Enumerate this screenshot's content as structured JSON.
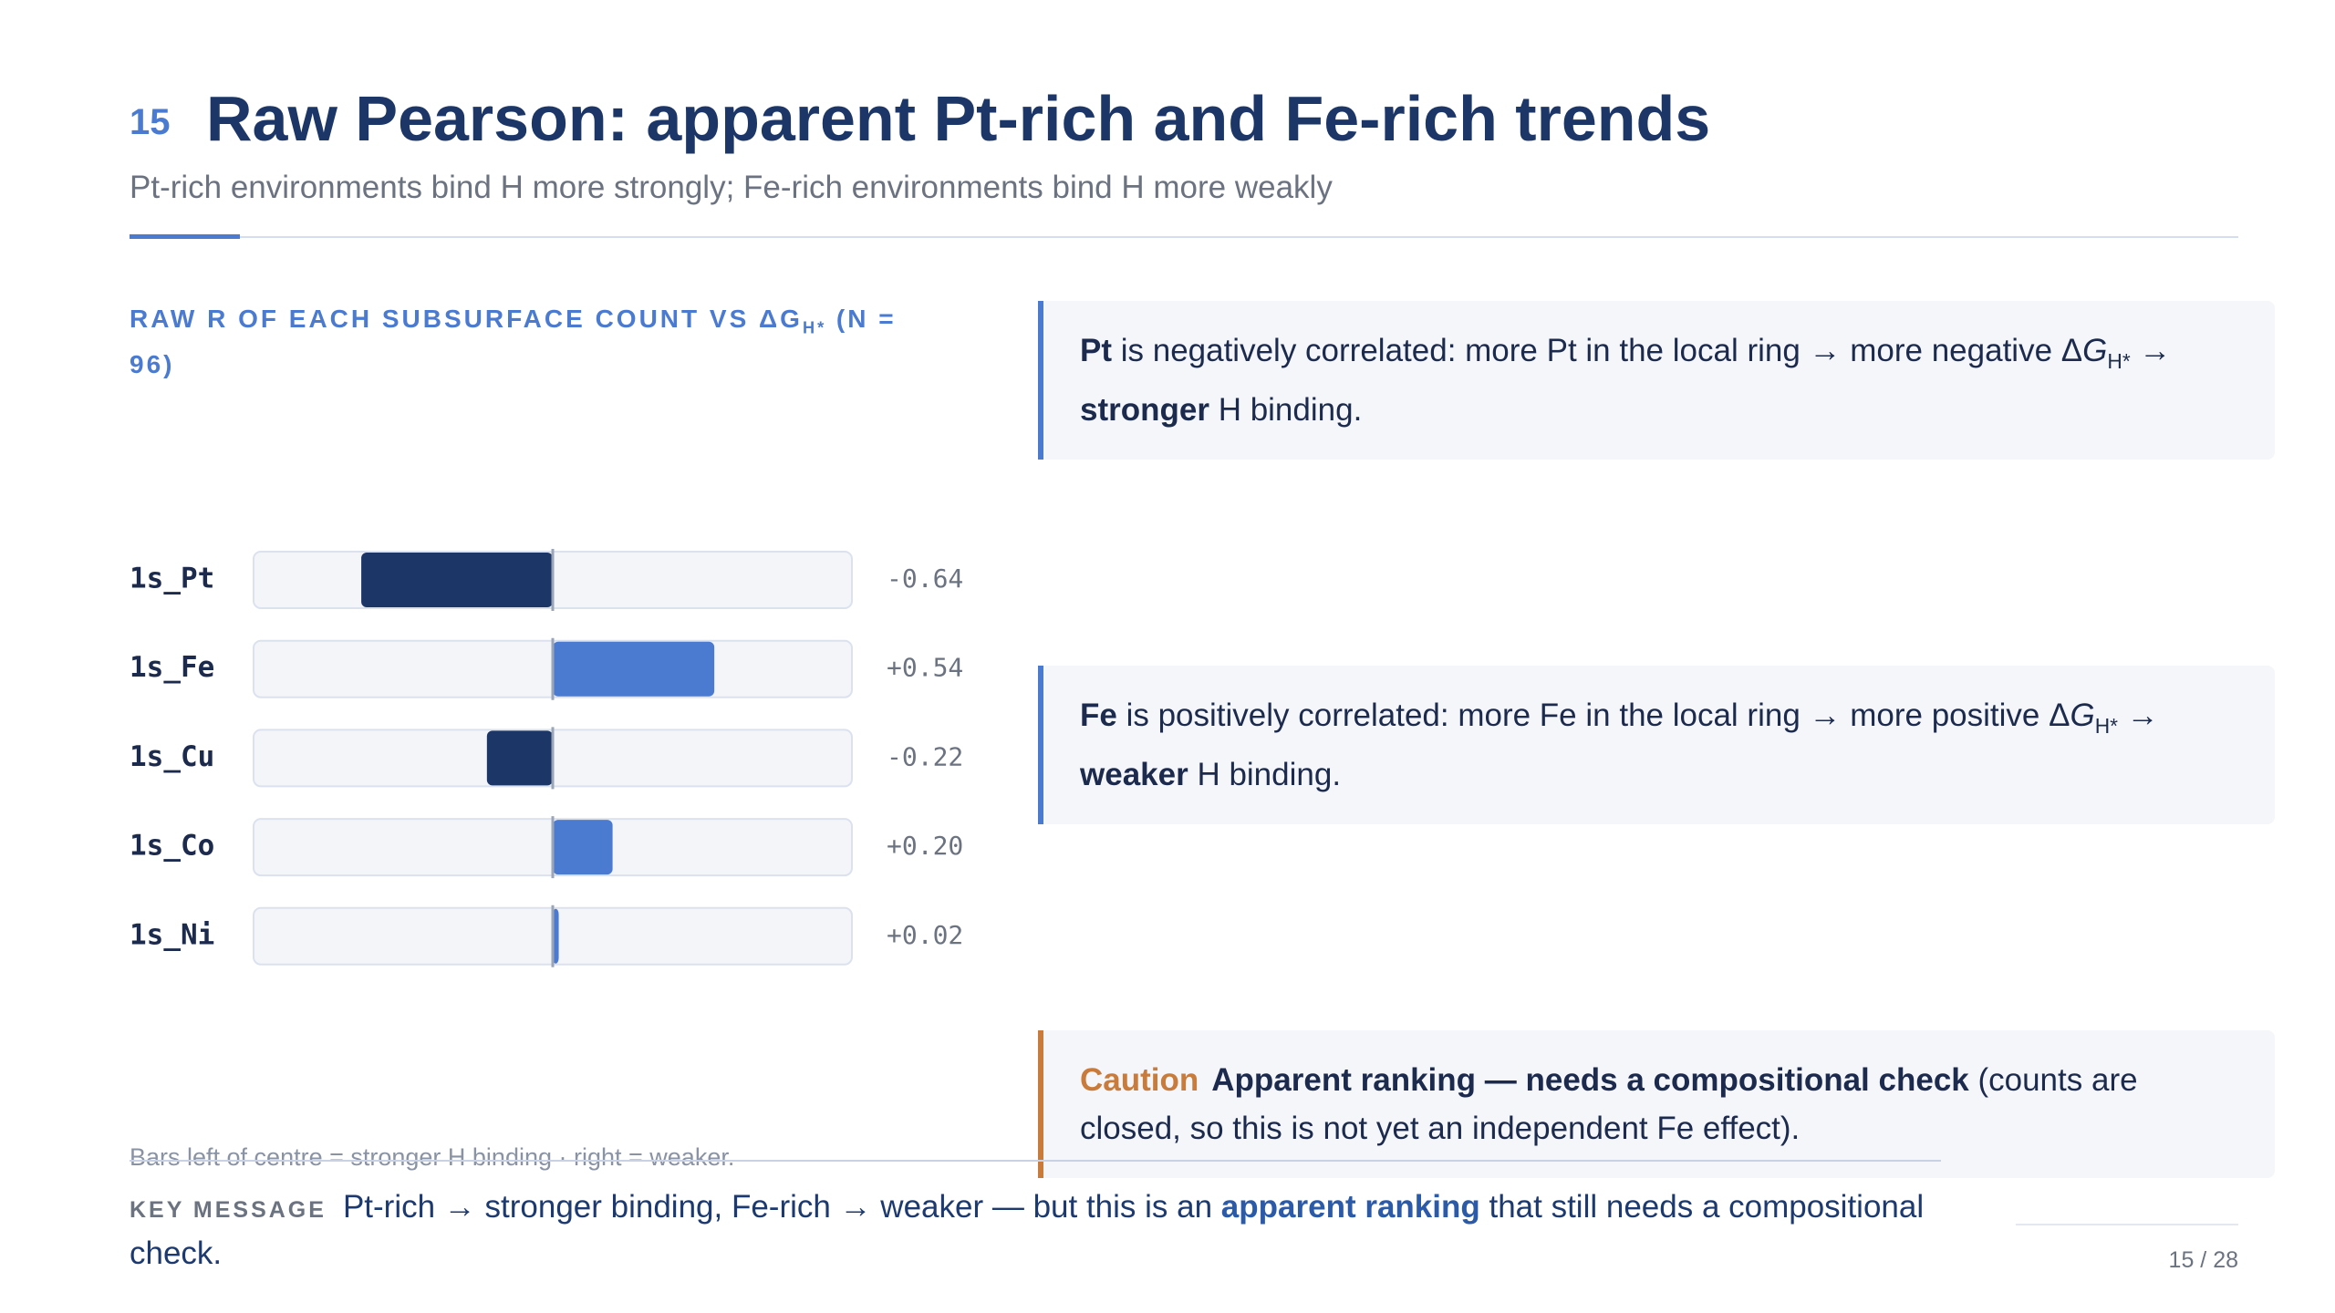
{
  "header": {
    "number": "15",
    "title": "Raw Pearson: apparent Pt-rich and Fe-rich trends",
    "subtitle": "Pt-rich environments bind H more strongly; Fe-rich environments bind H more weakly"
  },
  "chart_data": {
    "type": "bar",
    "orientation": "horizontal",
    "title": "RAW R OF EACH SUBSURFACE COUNT VS ΔG",
    "title_sub": "H*",
    "title_tail": " (N = 96)",
    "categories": [
      "1s_Pt",
      "1s_Fe",
      "1s_Cu",
      "1s_Co",
      "1s_Ni"
    ],
    "values": [
      -0.64,
      0.54,
      -0.22,
      0.2,
      0.02
    ],
    "value_labels": [
      "-0.64",
      "+0.54",
      "-0.22",
      "+0.20",
      "+0.02"
    ],
    "xlim": [
      -1,
      1
    ],
    "negative_color": "#1b3667",
    "positive_color": "#4a7bd1",
    "footnote": "Bars left of centre = stronger H binding · right = weaker."
  },
  "callouts": [
    {
      "lead": "Pt",
      "text1": " is negatively correlated: more Pt in the local ring → more negative Δ",
      "italic": "G",
      "sub": "H*",
      "text2": " → ",
      "strong": "stronger",
      "text3": " H binding."
    },
    {
      "lead": "Fe",
      "text1": " is positively correlated: more Fe in the local ring → more positive Δ",
      "italic": "G",
      "sub": "H*",
      "text2": " → ",
      "strong": "weaker",
      "text3": " H binding."
    },
    {
      "tag": "Caution",
      "strong": "Apparent ranking — needs a compositional check",
      "text": " (counts are closed, so this is not yet an independent Fe effect)."
    }
  ],
  "key_message": {
    "label": "KEY MESSAGE",
    "text1": "Pt-rich → stronger binding, Fe-rich → weaker — but this is an ",
    "highlight": "apparent ranking",
    "text2": " that still needs a compositional check."
  },
  "footer": {
    "page": "15 / 28"
  }
}
